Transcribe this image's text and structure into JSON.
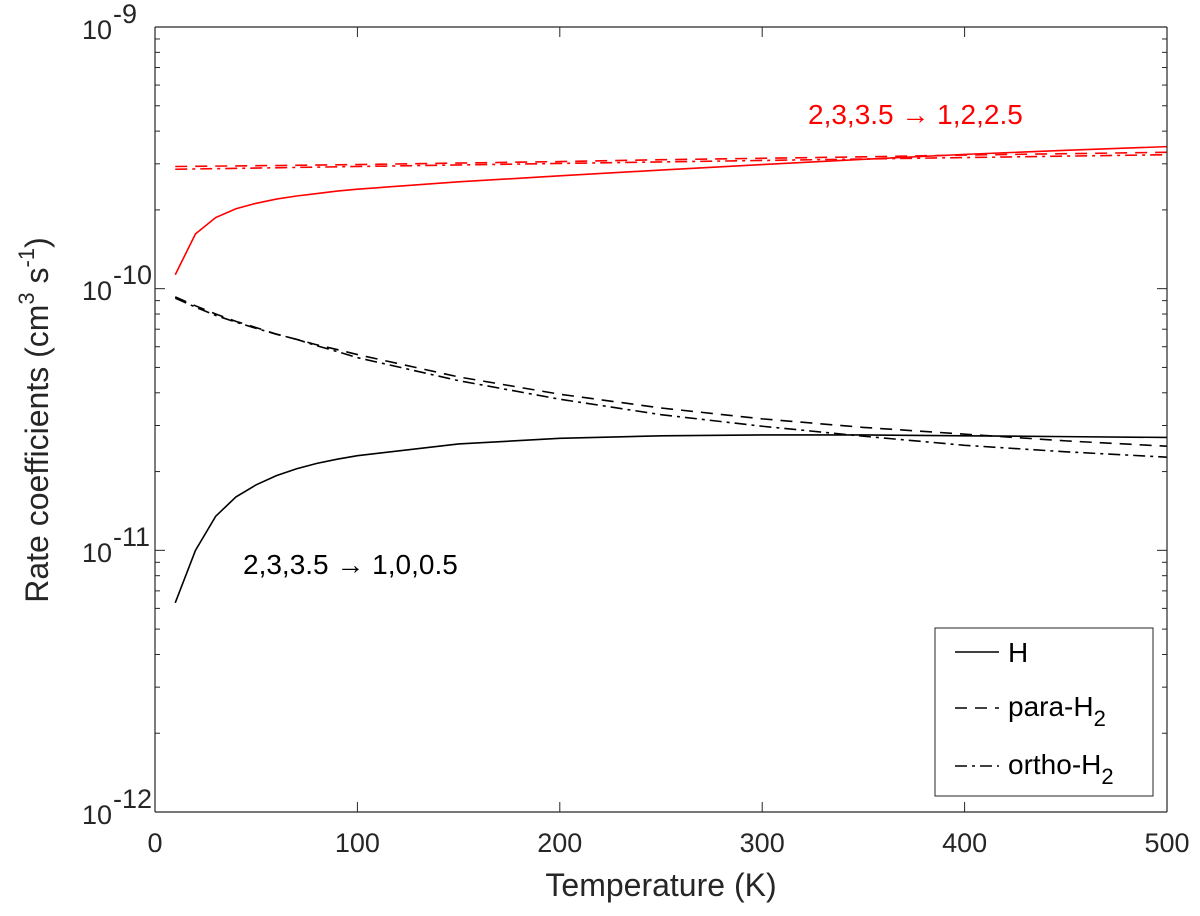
{
  "chart_data": {
    "type": "line",
    "xlabel": "Temperature (K)",
    "ylabel": {
      "prefix": "Rate coefficients (cm",
      "sup1": "3",
      "mid": " s",
      "sup2": "-1",
      "suffix": ")"
    },
    "xlim": [
      0,
      500
    ],
    "ylim": [
      1e-12,
      1e-09
    ],
    "yscale": "log",
    "grid": false,
    "legend_position": "bottom-right",
    "x_ticks": [
      "0",
      "100",
      "200",
      "300",
      "400",
      "500"
    ],
    "y_ticks": [
      {
        "base": "10",
        "exp": "-12"
      },
      {
        "base": "10",
        "exp": "-11"
      },
      {
        "base": "10",
        "exp": "-10"
      },
      {
        "base": "10",
        "exp": "-9"
      }
    ],
    "legend": [
      {
        "label": "H",
        "sub": "",
        "dash": "solid"
      },
      {
        "label": "para-H",
        "sub": "2",
        "dash": "dashed"
      },
      {
        "label": "ortho-H",
        "sub": "2",
        "dash": "dashdot"
      }
    ],
    "annotations": [
      {
        "text": "2,3,3.5 → 1,2,2.5",
        "color": "#ff0000"
      },
      {
        "text": "2,3,3.5 → 1,0,0.5",
        "color": "#000000"
      }
    ],
    "groups": [
      {
        "transition": "2,3,3.5 → 1,2,2.5",
        "color": "#ff0000",
        "series": [
          {
            "collider": "H",
            "dash": "solid",
            "x": [
              10,
              20,
              30,
              40,
              50,
              60,
              70,
              80,
              90,
              100,
              150,
              200,
              250,
              300,
              350,
              400,
              450,
              500
            ],
            "y": [
              1.13e-10,
              1.62e-10,
              1.87e-10,
              2.02e-10,
              2.12e-10,
              2.2e-10,
              2.26e-10,
              2.31e-10,
              2.36e-10,
              2.4e-10,
              2.56e-10,
              2.7e-10,
              2.84e-10,
              2.98e-10,
              3.12e-10,
              3.26e-10,
              3.38e-10,
              3.49e-10
            ]
          },
          {
            "collider": "para-H2",
            "dash": "dashed",
            "x": [
              10,
              50,
              100,
              150,
              200,
              250,
              300,
              350,
              400,
              450,
              500
            ],
            "y": [
              2.93e-10,
              2.95e-10,
              2.98e-10,
              3.02e-10,
              3.06e-10,
              3.11e-10,
              3.15e-10,
              3.19e-10,
              3.24e-10,
              3.28e-10,
              3.32e-10
            ]
          },
          {
            "collider": "ortho-H2",
            "dash": "dashdot",
            "x": [
              10,
              50,
              100,
              150,
              200,
              250,
              300,
              350,
              400,
              450,
              500
            ],
            "y": [
              2.86e-10,
              2.89e-10,
              2.93e-10,
              2.97e-10,
              3.01e-10,
              3.05e-10,
              3.09e-10,
              3.13e-10,
              3.17e-10,
              3.21e-10,
              3.25e-10
            ]
          }
        ]
      },
      {
        "transition": "2,3,3.5 → 1,0,0.5",
        "color": "#000000",
        "series": [
          {
            "collider": "H",
            "dash": "solid",
            "x": [
              10,
              20,
              30,
              40,
              50,
              60,
              70,
              80,
              90,
              100,
              150,
              200,
              250,
              300,
              350,
              400,
              450,
              500
            ],
            "y": [
              6.3e-12,
              1e-11,
              1.35e-11,
              1.6e-11,
              1.78e-11,
              1.93e-11,
              2.05e-11,
              2.15e-11,
              2.23e-11,
              2.3e-11,
              2.55e-11,
              2.68e-11,
              2.74e-11,
              2.76e-11,
              2.76e-11,
              2.74e-11,
              2.72e-11,
              2.7e-11
            ]
          },
          {
            "collider": "para-H2",
            "dash": "dashed",
            "x": [
              10,
              20,
              30,
              40,
              50,
              60,
              70,
              80,
              90,
              100,
              150,
              200,
              250,
              300,
              350,
              400,
              450,
              500
            ],
            "y": [
              9.3e-11,
              8.6e-11,
              8e-11,
              7.5e-11,
              7.1e-11,
              6.7e-11,
              6.4e-11,
              6.1e-11,
              5.85e-11,
              5.6e-11,
              4.6e-11,
              3.95e-11,
              3.5e-11,
              3.18e-11,
              2.95e-11,
              2.78e-11,
              2.62e-11,
              2.5e-11
            ]
          },
          {
            "collider": "ortho-H2",
            "dash": "dashdot",
            "x": [
              10,
              20,
              30,
              40,
              50,
              60,
              70,
              80,
              90,
              100,
              150,
              200,
              250,
              300,
              350,
              400,
              450,
              500
            ],
            "y": [
              9.2e-11,
              8.5e-11,
              7.9e-11,
              7.45e-11,
              7.05e-11,
              6.7e-11,
              6.4e-11,
              6.05e-11,
              5.75e-11,
              5.45e-11,
              4.45e-11,
              3.78e-11,
              3.3e-11,
              2.98e-11,
              2.73e-11,
              2.52e-11,
              2.38e-11,
              2.27e-11
            ]
          }
        ]
      }
    ]
  }
}
